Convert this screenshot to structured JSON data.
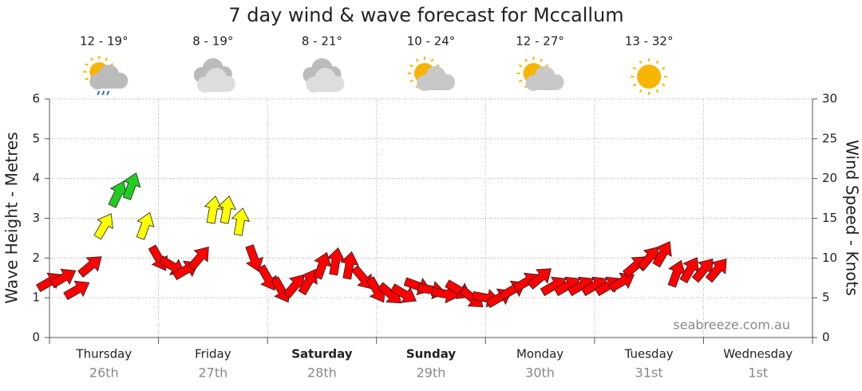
{
  "chart_data": {
    "type": "wind-arrows",
    "title": "7 day wind & wave forecast for Mccallum",
    "ylabel": "Wave Height - Metres",
    "y2label": "Wind Speed - Knots",
    "annotation": "seabreeze.com.au",
    "days": [
      {
        "name": "Thursday",
        "date": "26th",
        "temps": "12 - 19°",
        "icon": "showers",
        "bold": false
      },
      {
        "name": "Friday",
        "date": "27th",
        "temps": "8 - 19°",
        "icon": "cloudy",
        "bold": false
      },
      {
        "name": "Saturday",
        "date": "28th",
        "temps": "8 - 21°",
        "icon": "cloudy",
        "bold": true
      },
      {
        "name": "Sunday",
        "date": "29th",
        "temps": "10 - 24°",
        "icon": "partly-cloudy",
        "bold": true
      },
      {
        "name": "Monday",
        "date": "30th",
        "temps": "12 - 27°",
        "icon": "partly-cloudy",
        "bold": false
      },
      {
        "name": "Tuesday",
        "date": "31st",
        "temps": "13 - 32°",
        "icon": "sunny",
        "bold": false
      },
      {
        "name": "Wednesday",
        "date": "1st",
        "temps": null,
        "icon": null,
        "bold": false
      }
    ],
    "xlim": [
      0,
      168
    ],
    "xticks": [
      0,
      24,
      48,
      72,
      96,
      120,
      144,
      168
    ],
    "ylim": [
      0,
      6
    ],
    "yticks": [
      0,
      1,
      2,
      3,
      4,
      5,
      6
    ],
    "y2lim": [
      0,
      30
    ],
    "y2ticks": [
      0,
      5,
      10,
      15,
      20,
      25,
      30
    ],
    "grid": true,
    "series": [
      {
        "name": "Wind",
        "axis": "y2",
        "x": [
          0,
          3,
          6,
          9,
          12,
          15,
          18,
          21,
          24,
          27,
          30,
          33,
          36,
          39,
          42,
          45,
          48,
          51,
          54,
          57,
          60,
          63,
          66,
          69,
          72,
          75,
          78,
          81,
          84,
          87,
          90,
          93,
          96,
          99,
          102,
          105,
          108,
          111,
          114,
          117,
          120,
          123,
          126,
          129,
          132,
          135,
          138,
          141,
          144,
          147
        ],
        "values": [
          7,
          7.5,
          6,
          9,
          14,
          18,
          19,
          14,
          10,
          9,
          8.5,
          10,
          16,
          16,
          14.5,
          10,
          7.5,
          6,
          6.5,
          7,
          9,
          9.5,
          9,
          7.5,
          6,
          5.5,
          5.5,
          6.5,
          6,
          5.5,
          6,
          5,
          5,
          5,
          6,
          7,
          7.5,
          6.5,
          6.5,
          6.5,
          6.5,
          6.5,
          7,
          9,
          10,
          10.5,
          8,
          8.5,
          8.5,
          8.5
        ],
        "directions": [
          60,
          60,
          60,
          50,
          30,
          25,
          20,
          20,
          150,
          120,
          60,
          40,
          10,
          10,
          10,
          160,
          150,
          150,
          40,
          30,
          20,
          10,
          10,
          140,
          150,
          130,
          120,
          110,
          100,
          100,
          120,
          130,
          100,
          60,
          60,
          60,
          50,
          60,
          60,
          60,
          60,
          60,
          60,
          50,
          40,
          30,
          20,
          30,
          40,
          40
        ],
        "colors": [
          "#ff0000",
          "#ff0000",
          "#ff0000",
          "#ff0000",
          "#ffff00",
          "#22cc22",
          "#22cc22",
          "#ffff00",
          "#ff0000",
          "#ff0000",
          "#ff0000",
          "#ff0000",
          "#ffff00",
          "#ffff00",
          "#ffff00",
          "#ff0000",
          "#ff0000",
          "#ff0000",
          "#ff0000",
          "#ff0000",
          "#ff0000",
          "#ff0000",
          "#ff0000",
          "#ff0000",
          "#ff0000",
          "#ff0000",
          "#ff0000",
          "#ff0000",
          "#ff0000",
          "#ff0000",
          "#ff0000",
          "#ff0000",
          "#ff0000",
          "#ff0000",
          "#ff0000",
          "#ff0000",
          "#ff0000",
          "#ff0000",
          "#ff0000",
          "#ff0000",
          "#ff0000",
          "#ff0000",
          "#ff0000",
          "#ff0000",
          "#ff0000",
          "#ff0000",
          "#ff0000",
          "#ff0000",
          "#ff0000",
          "#ff0000"
        ]
      }
    ]
  }
}
